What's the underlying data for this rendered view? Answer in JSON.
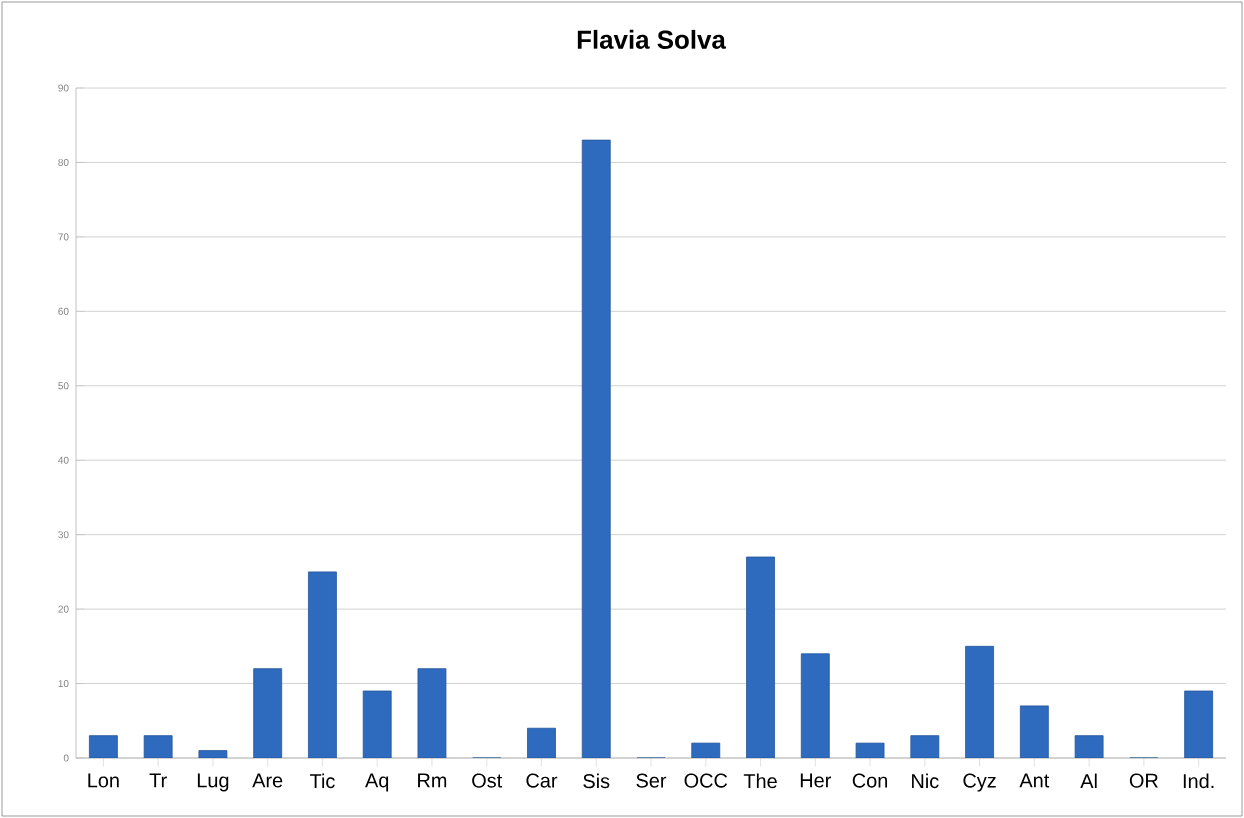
{
  "chart_data": {
    "type": "bar",
    "title": "Flavia Solva",
    "categories": [
      "Lon",
      "Tr",
      "Lug",
      "Are",
      "Tic",
      "Aq",
      "Rm",
      "Ost",
      "Car",
      "Sis",
      "Ser",
      "OCC",
      "The",
      "Her",
      "Con",
      "Nic",
      "Cyz",
      "Ant",
      "Al",
      "OR",
      "Ind."
    ],
    "values": [
      3,
      3,
      1,
      12,
      25,
      9,
      12,
      0,
      4,
      83,
      0,
      2,
      27,
      14,
      2,
      3,
      15,
      7,
      3,
      0,
      9
    ],
    "color": "#2e6bbf",
    "ylim": [
      0,
      90
    ],
    "yticks": [
      0,
      10,
      20,
      30,
      40,
      50,
      60,
      70,
      80,
      90
    ],
    "grid": "y"
  }
}
